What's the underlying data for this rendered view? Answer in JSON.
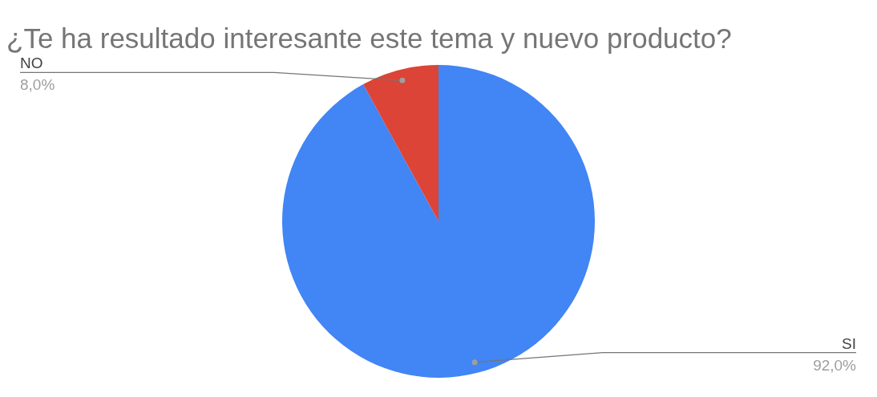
{
  "chart_data": {
    "type": "pie",
    "title": "¿Te ha resultado interesante este tema y nuevo producto?",
    "categories": [
      "SI",
      "NO"
    ],
    "values": [
      92,
      8
    ],
    "colors": [
      "#4285f4",
      "#db4437"
    ],
    "value_labels": [
      "92,0%",
      "8,0%"
    ],
    "legend": false
  }
}
